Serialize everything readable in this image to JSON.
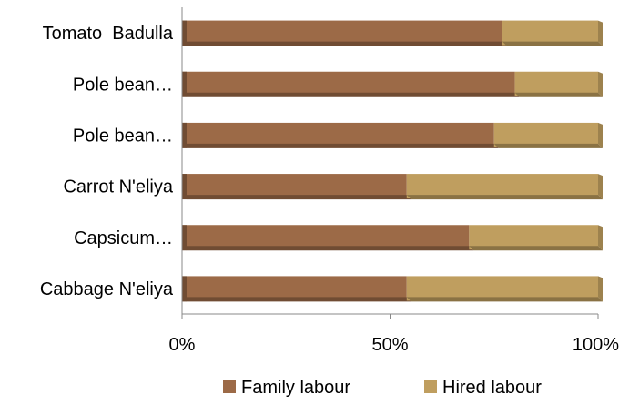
{
  "chart_data": {
    "type": "bar",
    "orientation": "horizontal",
    "stacked": "percent",
    "three_d": true,
    "categories": [
      "Tomato  Badulla",
      "Pole bean…",
      "Pole bean…",
      "Carrot N'eliya",
      "Capsicum…",
      "Cabbage N'eliya"
    ],
    "series": [
      {
        "name": "Family labour",
        "color": "#9c6a47",
        "values": [
          77,
          80,
          75,
          54,
          69,
          54
        ]
      },
      {
        "name": "Hired labour",
        "color": "#bf9e5f",
        "values": [
          23,
          20,
          25,
          46,
          31,
          46
        ]
      }
    ],
    "xticks": [
      "0%",
      "50%",
      "100%"
    ],
    "xlim": [
      0,
      100
    ],
    "grid": false,
    "legend_position": "bottom",
    "title": "",
    "xlabel": "",
    "ylabel": ""
  }
}
